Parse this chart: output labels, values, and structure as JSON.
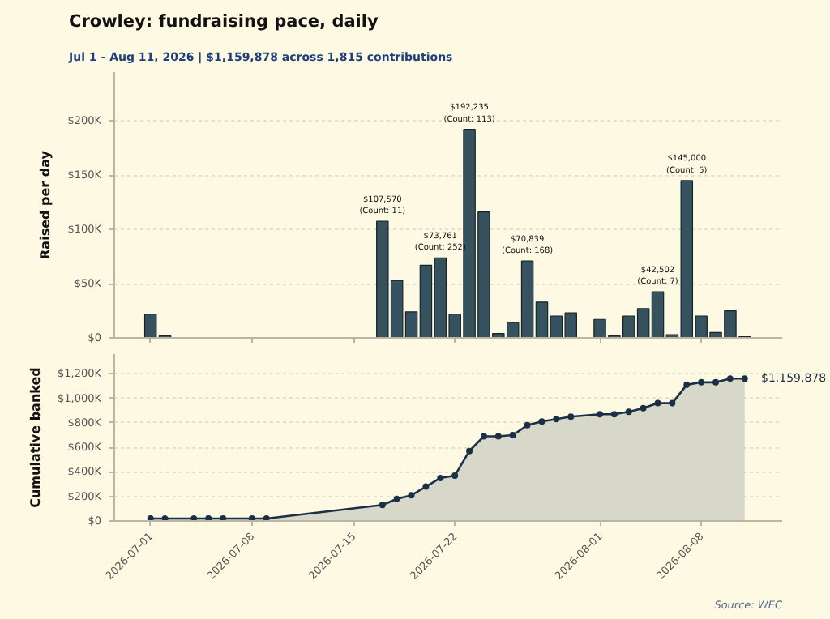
{
  "chart_data": [
    {
      "type": "bar",
      "title": "Crowley: fundraising pace, daily",
      "subtitle": "Jul 1 - Aug 11, 2026  |  $1,159,878 across 1,815 contributions",
      "ylabel": "Raised per day",
      "x": [
        "2026-07-01",
        "2026-07-02",
        "2026-07-17",
        "2026-07-18",
        "2026-07-19",
        "2026-07-20",
        "2026-07-21",
        "2026-07-22",
        "2026-07-23",
        "2026-07-24",
        "2026-07-25",
        "2026-07-26",
        "2026-07-27",
        "2026-07-28",
        "2026-07-29",
        "2026-07-30",
        "2026-08-01",
        "2026-08-02",
        "2026-08-03",
        "2026-08-04",
        "2026-08-05",
        "2026-08-06",
        "2026-08-07",
        "2026-08-08",
        "2026-08-09",
        "2026-08-10",
        "2026-08-11"
      ],
      "values": [
        22000,
        2000,
        107570,
        53000,
        24000,
        67000,
        73761,
        22000,
        192235,
        116000,
        4000,
        14000,
        70839,
        33000,
        20000,
        23000,
        17000,
        2000,
        20000,
        27000,
        42502,
        3000,
        145000,
        20000,
        5000,
        25000,
        1000
      ],
      "value_labels": [
        null,
        null,
        "$107,570\n(Count: 11)",
        null,
        null,
        null,
        "$73,761\n(Count: 252)",
        null,
        "$192,235\n(Count: 113)",
        null,
        null,
        null,
        "$70,839\n(Count: 168)",
        null,
        null,
        null,
        null,
        null,
        null,
        null,
        "$42,502\n(Count: 7)",
        null,
        "$145,000\n(Count: 5)",
        null,
        null,
        null,
        null
      ],
      "color": "#37525f",
      "xlim": [
        "2026-06-28T12:00",
        "2026-08-13T14:00"
      ],
      "xticks": [
        {
          "value": "2026-07-01",
          "label": null
        },
        {
          "value": "2026-07-08",
          "label": null
        },
        {
          "value": "2026-07-15",
          "label": null
        },
        {
          "value": "2026-07-22",
          "label": null
        },
        {
          "value": "2026-08-01",
          "label": null
        },
        {
          "value": "2026-08-08",
          "label": null
        }
      ],
      "ylim": [
        0,
        245000
      ],
      "yticks": [
        {
          "value": 0,
          "label": "$0"
        },
        {
          "value": 50000,
          "label": "$50K"
        },
        {
          "value": 100000,
          "label": "$100K"
        },
        {
          "value": 150000,
          "label": "$150K"
        },
        {
          "value": 200000,
          "label": "$200K"
        }
      ],
      "grid": "y",
      "tick_labels": "y"
    },
    {
      "type": "area",
      "ylabel": "Cumulative banked",
      "marker": "circle",
      "series": [
        {
          "color": "#1b2f47",
          "x": [
            "2026-07-01",
            "2026-07-02",
            "2026-07-04",
            "2026-07-05",
            "2026-07-06",
            "2026-07-08",
            "2026-07-09",
            "2026-07-17",
            "2026-07-18",
            "2026-07-19",
            "2026-07-20",
            "2026-07-21",
            "2026-07-22",
            "2026-07-23",
            "2026-07-24",
            "2026-07-25",
            "2026-07-26",
            "2026-07-27",
            "2026-07-28",
            "2026-07-29",
            "2026-07-30",
            "2026-08-01",
            "2026-08-02",
            "2026-08-03",
            "2026-08-04",
            "2026-08-05",
            "2026-08-06",
            "2026-08-07",
            "2026-08-08",
            "2026-08-09",
            "2026-08-10",
            "2026-08-11"
          ],
          "values": [
            20000,
            20000,
            20000,
            20000,
            20000,
            20000,
            20000,
            130000,
            180000,
            210000,
            280000,
            350000,
            370000,
            570000,
            690000,
            690000,
            700000,
            780000,
            810000,
            830000,
            850000,
            870000,
            870000,
            890000,
            920000,
            960000,
            960000,
            1110000,
            1130000,
            1130000,
            1160000,
            1159878
          ]
        }
      ],
      "annotations": [
        {
          "text": "$1,159,878",
          "x": "2026-08-11",
          "y": 1159878
        },
        "Source: WEC"
      ],
      "xlim": [
        "2026-06-28T12:00",
        "2026-08-13T14:00"
      ],
      "xticks": [
        "2026-07-01",
        "2026-07-08",
        "2026-07-15",
        "2026-07-22",
        "2026-08-01",
        "2026-08-08"
      ],
      "ylim": [
        0,
        1360000
      ],
      "yticks": [
        {
          "value": 0,
          "label": "$0"
        },
        {
          "value": 200000,
          "label": "$200K"
        },
        {
          "value": 400000,
          "label": "$400K"
        },
        {
          "value": 600000,
          "label": "$600K"
        },
        {
          "value": 800000,
          "label": "$800K"
        },
        {
          "value": 1000000,
          "label": "$1,000K"
        },
        {
          "value": 1200000,
          "label": "$1,200K"
        }
      ],
      "grid": "y"
    }
  ]
}
